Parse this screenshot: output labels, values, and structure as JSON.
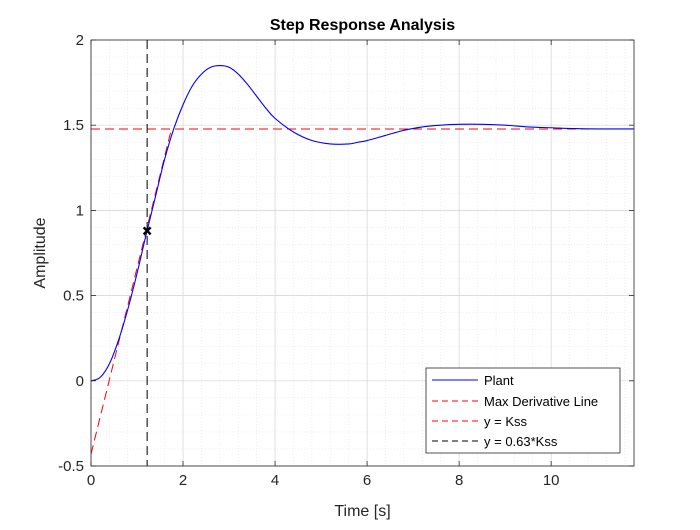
{
  "chart_data": {
    "type": "line",
    "title": "Step Response Analysis",
    "xlabel": "Time [s]",
    "ylabel": "Amplitude",
    "xlim": [
      0,
      11.8
    ],
    "ylim": [
      -0.5,
      2
    ],
    "x_ticks": [
      0,
      2,
      4,
      6,
      8,
      10
    ],
    "x_tick_labels": [
      "0",
      "2",
      "4",
      "6",
      "8",
      "10"
    ],
    "y_ticks": [
      -0.5,
      0,
      0.5,
      1,
      1.5,
      2
    ],
    "y_tick_labels": [
      "-0.5",
      "0",
      "0.5",
      "1",
      "1.5",
      "2"
    ],
    "grid": true,
    "minor_grid": true,
    "legend_position": "bottom-right",
    "series": [
      {
        "name": "Plant",
        "style": "solid",
        "color": "#0000ff",
        "x": [
          0,
          0.2,
          0.4,
          0.6,
          0.8,
          1.0,
          1.2,
          1.4,
          1.6,
          1.8,
          2.0,
          2.2,
          2.4,
          2.6,
          2.8,
          3.0,
          3.2,
          3.4,
          3.6,
          3.8,
          4.0,
          4.4,
          4.8,
          5.2,
          5.6,
          5.8,
          6.0,
          6.4,
          6.8,
          7.2,
          7.6,
          8.0,
          8.5,
          9.0,
          9.5,
          10.0,
          10.5,
          11.0,
          11.8
        ],
        "y": [
          0.0,
          0.02,
          0.1,
          0.24,
          0.42,
          0.63,
          0.86,
          1.08,
          1.3,
          1.48,
          1.62,
          1.73,
          1.8,
          1.84,
          1.85,
          1.84,
          1.8,
          1.74,
          1.67,
          1.6,
          1.54,
          1.46,
          1.41,
          1.39,
          1.39,
          1.4,
          1.41,
          1.44,
          1.47,
          1.49,
          1.5,
          1.505,
          1.505,
          1.5,
          1.49,
          1.485,
          1.48,
          1.478,
          1.478
        ]
      },
      {
        "name": "Max Derivative Line",
        "style": "dashed",
        "color": "#ff0000",
        "x": [
          0,
          1.75
        ],
        "y": [
          -0.43,
          1.48
        ]
      },
      {
        "name": "y = Kss",
        "style": "dashed",
        "color": "#ff0000",
        "x": [
          0,
          11.8
        ],
        "y": [
          1.478,
          1.478
        ]
      },
      {
        "name": "y = 0.63*Kss",
        "style": "dashed",
        "color": "#000000",
        "vertical_x": 1.22
      }
    ],
    "marker": {
      "x": 1.22,
      "y": 0.88,
      "symbol": "x",
      "color": "#000000"
    }
  }
}
